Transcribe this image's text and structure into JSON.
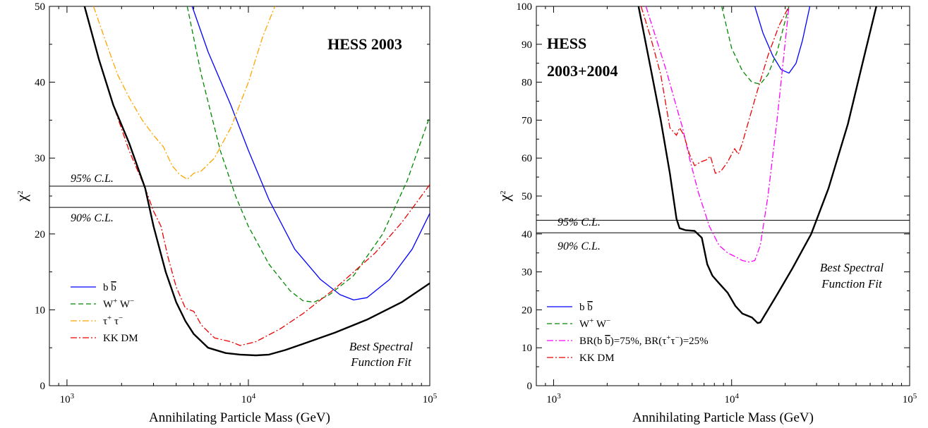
{
  "chart_data": [
    {
      "type": "line",
      "title": "HESS 2003",
      "xlabel": "Annihilating Particle Mass (GeV)",
      "ylabel": "χ²",
      "xscale": "log",
      "xlim": [
        800,
        100000
      ],
      "ylim": [
        0,
        50
      ],
      "yticks": [
        0,
        10,
        20,
        30,
        40,
        50
      ],
      "xtick_labels": [
        {
          "base": "10",
          "exp": "3"
        },
        {
          "base": "10",
          "exp": "4"
        },
        {
          "base": "10",
          "exp": "5"
        }
      ],
      "hlines": [
        {
          "label": "95% C.L.",
          "y": 26.3
        },
        {
          "label": "90% C.L.",
          "y": 23.5
        }
      ],
      "annotation": [
        "Best Spectral",
        "Function Fit"
      ],
      "legend_position": "lower-left",
      "series": [
        {
          "name": "b b̄",
          "color": "#0000ff",
          "dash": "solid",
          "x": [
            4900,
            6000,
            8000,
            10000,
            13000,
            18000,
            25000,
            32000,
            38000,
            45000,
            60000,
            80000,
            100000
          ],
          "y": [
            50,
            44,
            37,
            31,
            24.5,
            18,
            14,
            12,
            11.3,
            11.6,
            14,
            18,
            22.7
          ]
        },
        {
          "name": "W⁺ W⁻",
          "color": "#008800",
          "dash": "dashed",
          "x": [
            4600,
            5500,
            7000,
            8500,
            10000,
            13000,
            17000,
            20000,
            23000,
            28000,
            38000,
            55000,
            75000,
            100000
          ],
          "y": [
            50,
            41,
            31,
            25,
            21,
            16,
            12.5,
            11.2,
            11,
            12,
            14.5,
            20,
            27,
            35.5
          ]
        },
        {
          "name": "τ⁺ τ⁻",
          "color": "#ffa500",
          "dash": "dashdot",
          "x": [
            1400,
            1600,
            1900,
            2200,
            2600,
            3000,
            3400,
            3800,
            4200,
            4600,
            5000,
            5500,
            6500,
            8000,
            10000,
            12000,
            14000
          ],
          "y": [
            50,
            46,
            41,
            38,
            35,
            33,
            31.5,
            29,
            27.8,
            27.2,
            28,
            28.3,
            30,
            34,
            40,
            46,
            50
          ]
        },
        {
          "name": "KK DM",
          "color": "#ee0000",
          "dash": "dashdot",
          "x": [
            1250,
            1500,
            1800,
            2200,
            2700,
            3000,
            3300,
            3600,
            4000,
            4500,
            5000,
            5500,
            6500,
            8000,
            9000,
            11000,
            15000,
            20000,
            30000,
            50000,
            70000,
            100000
          ],
          "y": [
            50,
            43,
            37,
            31,
            26,
            23,
            21,
            17,
            13,
            10.2,
            9.8,
            8,
            6.3,
            5.8,
            5.3,
            5.8,
            7.5,
            9.5,
            12.8,
            17.5,
            21.5,
            26.5
          ]
        },
        {
          "name": "",
          "color": "#000000",
          "dash": "solid",
          "x": [
            1250,
            1500,
            1800,
            2200,
            2700,
            3000,
            3500,
            4000,
            4500,
            5000,
            6000,
            7500,
            9000,
            11000,
            13000,
            16000,
            20000,
            30000,
            45000,
            70000,
            100000
          ],
          "y": [
            50,
            43,
            37,
            32,
            26,
            21,
            15,
            11,
            8.5,
            6.8,
            5,
            4.3,
            4.1,
            4,
            4.1,
            4.7,
            5.5,
            7,
            8.7,
            11,
            13.5
          ]
        }
      ]
    },
    {
      "type": "line",
      "title": "HESS",
      "title2": "2003+2004",
      "xlabel": "Annihilating Particle Mass (GeV)",
      "ylabel": "χ²",
      "xscale": "log",
      "xlim": [
        800,
        100000
      ],
      "ylim": [
        0,
        100
      ],
      "yticks": [
        0,
        10,
        20,
        30,
        40,
        50,
        60,
        70,
        80,
        90,
        100
      ],
      "xtick_labels": [
        {
          "base": "10",
          "exp": "3"
        },
        {
          "base": "10",
          "exp": "4"
        },
        {
          "base": "10",
          "exp": "5"
        }
      ],
      "hlines": [
        {
          "label": "95% C.L.",
          "y": 43.6
        },
        {
          "label": "90% C.L.",
          "y": 40.3
        }
      ],
      "annotation": [
        "Best Spectral",
        "Function Fit"
      ],
      "legend_position": "lower-left",
      "series": [
        {
          "name": "b b̄",
          "color": "#0000ff",
          "dash": "solid",
          "x": [
            13500,
            15000,
            17000,
            19000,
            21000,
            23000,
            25000,
            27500
          ],
          "y": [
            100,
            93,
            87,
            83.3,
            82.4,
            85,
            91,
            100
          ]
        },
        {
          "name": "W⁺ W⁻",
          "color": "#008800",
          "dash": "dashed",
          "x": [
            8800,
            10000,
            11500,
            13000,
            14500,
            16000,
            18000,
            21000
          ],
          "y": [
            100,
            89,
            83,
            80,
            79.5,
            82,
            88,
            100
          ]
        },
        {
          "name": "BR(b b̄)=75%, BR(τ⁺τ⁻)=25%",
          "color": "#ff00ff",
          "dash": "dashdot",
          "x": [
            3300,
            3800,
            4300,
            4800,
            5300,
            5800,
            6500,
            7500,
            8500,
            9500,
            10500,
            11500,
            12500,
            13500,
            14500,
            16000,
            18000,
            21000
          ],
          "y": [
            100,
            91,
            83,
            75,
            68,
            60,
            51,
            42,
            37,
            35,
            34,
            33,
            32.6,
            33,
            37,
            50,
            70,
            100
          ]
        },
        {
          "name": "KK DM",
          "color": "#ee0000",
          "dash": "dashdot",
          "x": [
            3100,
            3500,
            4000,
            4500,
            4900,
            5100,
            5400,
            5800,
            6200,
            6700,
            7200,
            7600,
            8100,
            8700,
            9500,
            10400,
            10900,
            11500,
            12500,
            14000,
            16000,
            18500,
            21000
          ],
          "y": [
            100,
            92,
            82,
            68,
            66,
            68,
            66,
            61,
            58,
            59,
            59.5,
            60.5,
            56,
            56.5,
            59,
            62.5,
            61,
            64,
            70,
            78,
            87,
            95,
            100
          ]
        },
        {
          "name": "",
          "color": "#000000",
          "dash": "solid",
          "x": [
            3000,
            3500,
            4000,
            4500,
            4900,
            5100,
            5500,
            6200,
            6800,
            7300,
            7800,
            8500,
            9500,
            10500,
            11500,
            13000,
            14000,
            14500,
            16000,
            18000,
            22000,
            28000,
            35000,
            45000,
            55000,
            65000
          ],
          "y": [
            100,
            84,
            70,
            56,
            44,
            41.5,
            41,
            40.8,
            39,
            32,
            29,
            27,
            24.5,
            21,
            19,
            18,
            16.5,
            16.7,
            20,
            24,
            31,
            40,
            52,
            69,
            86,
            100
          ]
        }
      ]
    }
  ]
}
